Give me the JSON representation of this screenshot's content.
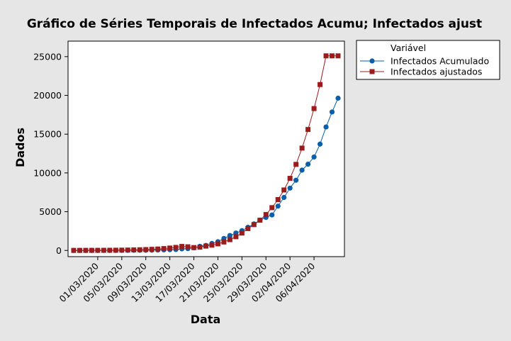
{
  "chart_data": {
    "type": "line",
    "title": "Gráfico de Séries Temporais de Infectados Acumu; Infectados ajust",
    "xlabel": "Data",
    "ylabel": "Dados",
    "ylim": [
      -800,
      27000
    ],
    "yticks": [
      0,
      5000,
      10000,
      15000,
      20000,
      25000
    ],
    "x": [
      "26/02/2020",
      "27/02/2020",
      "28/02/2020",
      "29/02/2020",
      "01/03/2020",
      "02/03/2020",
      "03/03/2020",
      "04/03/2020",
      "05/03/2020",
      "06/03/2020",
      "07/03/2020",
      "08/03/2020",
      "09/03/2020",
      "10/03/2020",
      "11/03/2020",
      "12/03/2020",
      "13/03/2020",
      "14/03/2020",
      "15/03/2020",
      "16/03/2020",
      "17/03/2020",
      "18/03/2020",
      "19/03/2020",
      "20/03/2020",
      "21/03/2020",
      "22/03/2020",
      "23/03/2020",
      "24/03/2020",
      "25/03/2020",
      "26/03/2020",
      "27/03/2020",
      "28/03/2020",
      "29/03/2020",
      "30/03/2020",
      "31/03/2020",
      "01/04/2020",
      "02/04/2020",
      "03/04/2020",
      "04/04/2020",
      "05/04/2020",
      "06/04/2020",
      "07/04/2020",
      "08/04/2020",
      "09/04/2020",
      "10/04/2020"
    ],
    "xtick_labels": [
      "01/03/2020",
      "05/03/2020",
      "09/03/2020",
      "13/03/2020",
      "17/03/2020",
      "21/03/2020",
      "25/03/2020",
      "29/03/2020",
      "02/04/2020",
      "06/04/2020"
    ],
    "legend": {
      "title": "Variável",
      "position": "right"
    },
    "series": [
      {
        "name": "Infectados Acumulado",
        "color": "#0b5ea8",
        "marker": "circle",
        "values": [
          1,
          1,
          1,
          2,
          2,
          2,
          2,
          3,
          8,
          13,
          25,
          25,
          25,
          34,
          52,
          77,
          98,
          121,
          200,
          234,
          346,
          529,
          640,
          904,
          1128,
          1546,
          1924,
          2247,
          2554,
          2985,
          3417,
          3904,
          4256,
          4579,
          5717,
          6836,
          8044,
          9056,
          10360,
          11130,
          12056,
          13717,
          15927,
          17857,
          19638
        ]
      },
      {
        "name": "Infectados ajustados",
        "color": "#9b1c1c",
        "marker": "square",
        "values": [
          5,
          7,
          9,
          12,
          15,
          19,
          25,
          32,
          41,
          53,
          68,
          88,
          113,
          145,
          186,
          240,
          310,
          390,
          520,
          470,
          370,
          420,
          560,
          680,
          850,
          1090,
          1390,
          1770,
          2240,
          2820,
          3330,
          3900,
          4630,
          5520,
          6560,
          7800,
          9300,
          11100,
          13200,
          15600,
          18300,
          21400,
          25100,
          25100,
          25100
        ]
      }
    ]
  }
}
